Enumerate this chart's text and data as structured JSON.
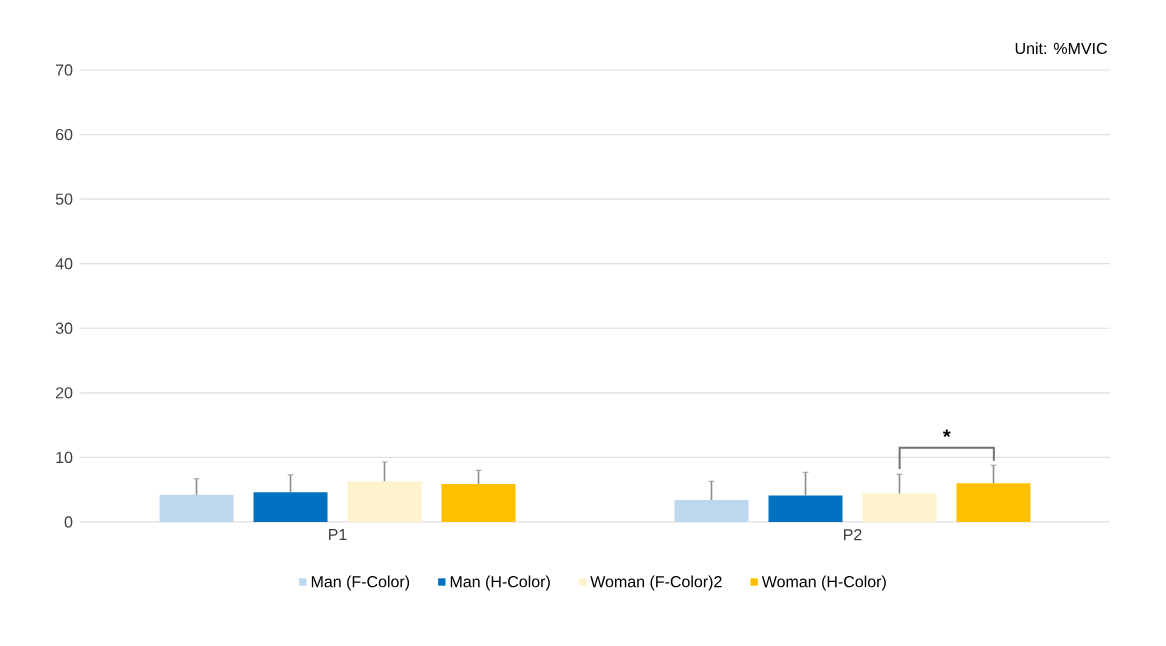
{
  "chart_data": {
    "type": "bar",
    "categories": [
      "P1",
      "P2"
    ],
    "series": [
      {
        "name": "Man (F-Color)",
        "color": "#bdd7ee",
        "values": [
          4.2,
          3.4
        ],
        "errors": [
          2.5,
          2.9
        ]
      },
      {
        "name": "Man (H-Color)",
        "color": "#0070c0",
        "values": [
          4.6,
          4.1
        ],
        "errors": [
          2.7,
          3.6
        ]
      },
      {
        "name": "Woman (F-Color)2",
        "color": "#fff2cc",
        "values": [
          6.3,
          4.4
        ],
        "errors": [
          3.0,
          3.0
        ]
      },
      {
        "name": "Woman (H-Color)",
        "color": "#ffc000",
        "values": [
          5.9,
          6.0
        ],
        "errors": [
          2.1,
          2.8
        ]
      }
    ],
    "ylim": [
      0,
      70
    ],
    "yticks": [
      0,
      10,
      20,
      30,
      40,
      50,
      60,
      70
    ],
    "grid": "y",
    "legend": "bottom",
    "annotations": [
      "Unit: %MVIC",
      "*"
    ]
  }
}
